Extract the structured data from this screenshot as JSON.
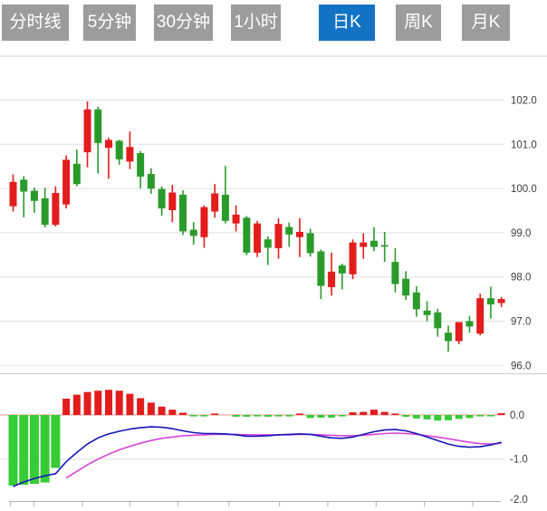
{
  "toolbar": {
    "tabs": [
      {
        "label": "分时线"
      },
      {
        "label": "5分钟"
      },
      {
        "label": "30分钟"
      },
      {
        "label": "1小时"
      },
      {
        "label": "日K"
      },
      {
        "label": "周K"
      },
      {
        "label": "月K"
      }
    ],
    "active_tab": "日K"
  },
  "chart_data": {
    "type": "candlestick",
    "title": "日K (daily candlestick) with MACD panel",
    "price_axis": {
      "tick_labels": [
        "102.0",
        "101.0",
        "100.0",
        "99.0",
        "98.0",
        "97.0",
        "96.0"
      ],
      "tick_values": [
        102.0,
        101.0,
        100.0,
        99.0,
        98.0,
        97.0,
        96.0
      ],
      "position": "right",
      "grid": true
    },
    "macd_axis": {
      "tick_labels": [
        "0.0",
        "-1.0",
        "-2.0"
      ],
      "tick_values": [
        0.0,
        -1.0,
        -2.0
      ],
      "position": "right",
      "grid": true
    },
    "convention": "chinese: red = up candle, green = down candle",
    "candles_ohlc": [
      [
        99.6,
        100.32,
        99.48,
        100.15
      ],
      [
        100.2,
        100.28,
        99.35,
        99.93
      ],
      [
        99.95,
        100.02,
        99.45,
        99.72
      ],
      [
        99.78,
        100.02,
        99.12,
        99.18
      ],
      [
        99.18,
        100.05,
        99.14,
        99.9
      ],
      [
        99.64,
        100.75,
        99.55,
        100.65
      ],
      [
        100.56,
        100.88,
        100.05,
        100.1
      ],
      [
        100.82,
        101.97,
        100.48,
        101.79
      ],
      [
        101.79,
        101.85,
        100.34,
        101.03
      ],
      [
        100.92,
        101.15,
        100.22,
        101.1
      ],
      [
        101.08,
        101.1,
        100.54,
        100.66
      ],
      [
        100.61,
        101.29,
        100.44,
        100.94
      ],
      [
        100.8,
        100.85,
        100.0,
        100.27
      ],
      [
        100.33,
        100.46,
        99.88,
        100.0
      ],
      [
        99.99,
        100.05,
        99.38,
        99.55
      ],
      [
        99.51,
        100.08,
        99.24,
        99.91
      ],
      [
        99.86,
        99.96,
        98.95,
        99.03
      ],
      [
        99.07,
        99.24,
        98.73,
        98.93
      ],
      [
        98.9,
        99.62,
        98.66,
        99.58
      ],
      [
        99.48,
        100.1,
        99.34,
        99.89
      ],
      [
        99.86,
        100.51,
        99.21,
        99.27
      ],
      [
        99.21,
        99.62,
        99.03,
        99.41
      ],
      [
        99.34,
        99.38,
        98.49,
        98.55
      ],
      [
        98.55,
        99.27,
        98.45,
        99.21
      ],
      [
        98.85,
        98.92,
        98.27,
        98.66
      ],
      [
        98.65,
        99.33,
        98.41,
        99.2
      ],
      [
        99.13,
        99.23,
        98.68,
        98.96
      ],
      [
        98.9,
        99.33,
        98.45,
        99.02
      ],
      [
        98.99,
        99.09,
        98.46,
        98.54
      ],
      [
        98.58,
        98.62,
        97.5,
        97.8
      ],
      [
        97.77,
        98.55,
        97.58,
        98.12
      ],
      [
        98.26,
        98.3,
        97.72,
        98.08
      ],
      [
        98.06,
        98.85,
        97.95,
        98.78
      ],
      [
        98.68,
        98.99,
        98.41,
        98.78
      ],
      [
        98.82,
        99.13,
        98.58,
        98.68
      ],
      [
        98.72,
        99.02,
        98.34,
        98.7
      ],
      [
        98.34,
        98.65,
        97.65,
        97.84
      ],
      [
        97.96,
        98.13,
        97.48,
        97.58
      ],
      [
        97.65,
        97.79,
        97.1,
        97.27
      ],
      [
        97.24,
        97.45,
        97.0,
        97.14
      ],
      [
        97.2,
        97.28,
        96.65,
        96.84
      ],
      [
        96.74,
        96.9,
        96.31,
        96.55
      ],
      [
        96.55,
        96.88,
        96.48,
        96.98
      ],
      [
        97.0,
        97.12,
        96.74,
        96.88
      ],
      [
        96.72,
        97.62,
        96.68,
        97.52
      ],
      [
        97.52,
        97.78,
        97.06,
        97.38
      ],
      [
        97.41,
        97.55,
        97.32,
        97.5
      ]
    ],
    "macd": {
      "histogram": [
        -1.6,
        -1.58,
        -1.56,
        -1.53,
        -1.2,
        0.37,
        0.46,
        0.52,
        0.55,
        0.57,
        0.55,
        0.48,
        0.38,
        0.28,
        0.19,
        0.12,
        0.05,
        -0.03,
        -0.03,
        0.02,
        0.0,
        -0.04,
        -0.04,
        -0.03,
        -0.04,
        -0.03,
        -0.03,
        0.03,
        -0.07,
        -0.06,
        -0.06,
        -0.02,
        0.06,
        0.07,
        0.12,
        0.07,
        0.03,
        -0.04,
        -0.08,
        -0.1,
        -0.13,
        -0.12,
        -0.09,
        -0.07,
        -0.03,
        -0.03,
        0.04
      ],
      "dif_line": [
        -1.62,
        -1.52,
        -1.44,
        -1.38,
        -1.33,
        -1.06,
        -0.85,
        -0.66,
        -0.52,
        -0.43,
        -0.37,
        -0.32,
        -0.29,
        -0.27,
        -0.28,
        -0.31,
        -0.36,
        -0.4,
        -0.42,
        -0.42,
        -0.43,
        -0.45,
        -0.48,
        -0.48,
        -0.47,
        -0.45,
        -0.44,
        -0.43,
        -0.44,
        -0.48,
        -0.52,
        -0.53,
        -0.5,
        -0.44,
        -0.38,
        -0.34,
        -0.33,
        -0.36,
        -0.42,
        -0.5,
        -0.58,
        -0.66,
        -0.71,
        -0.73,
        -0.72,
        -0.68,
        -0.62
      ],
      "dea_line": [
        null,
        null,
        null,
        null,
        null,
        -1.43,
        -1.28,
        -1.13,
        -1.0,
        -0.89,
        -0.79,
        -0.71,
        -0.64,
        -0.58,
        -0.53,
        -0.5,
        -0.47,
        -0.46,
        -0.45,
        -0.44,
        -0.44,
        -0.44,
        -0.45,
        -0.45,
        -0.45,
        -0.45,
        -0.45,
        -0.44,
        -0.44,
        -0.45,
        -0.46,
        -0.47,
        -0.47,
        -0.46,
        -0.44,
        -0.42,
        -0.41,
        -0.42,
        -0.44,
        -0.47,
        -0.5,
        -0.54,
        -0.58,
        -0.62,
        -0.65,
        -0.66,
        -0.64
      ]
    },
    "colors": {
      "up_red": "#e21d1d",
      "down_green": "#2a9b2a",
      "macd_bar_green": "#35cc35",
      "macd_bar_red": "#e21d1d",
      "dif_blue": "#1717b8",
      "dea_magenta": "#d843d8",
      "zero_line_red": "#f09090",
      "grid_gray": "#e0e0e0",
      "axis_gray": "#b0b0b0",
      "label_gray": "#3d3d3d",
      "tab_gray": "#9c9c9c",
      "tab_active_blue": "#1273c4"
    }
  }
}
